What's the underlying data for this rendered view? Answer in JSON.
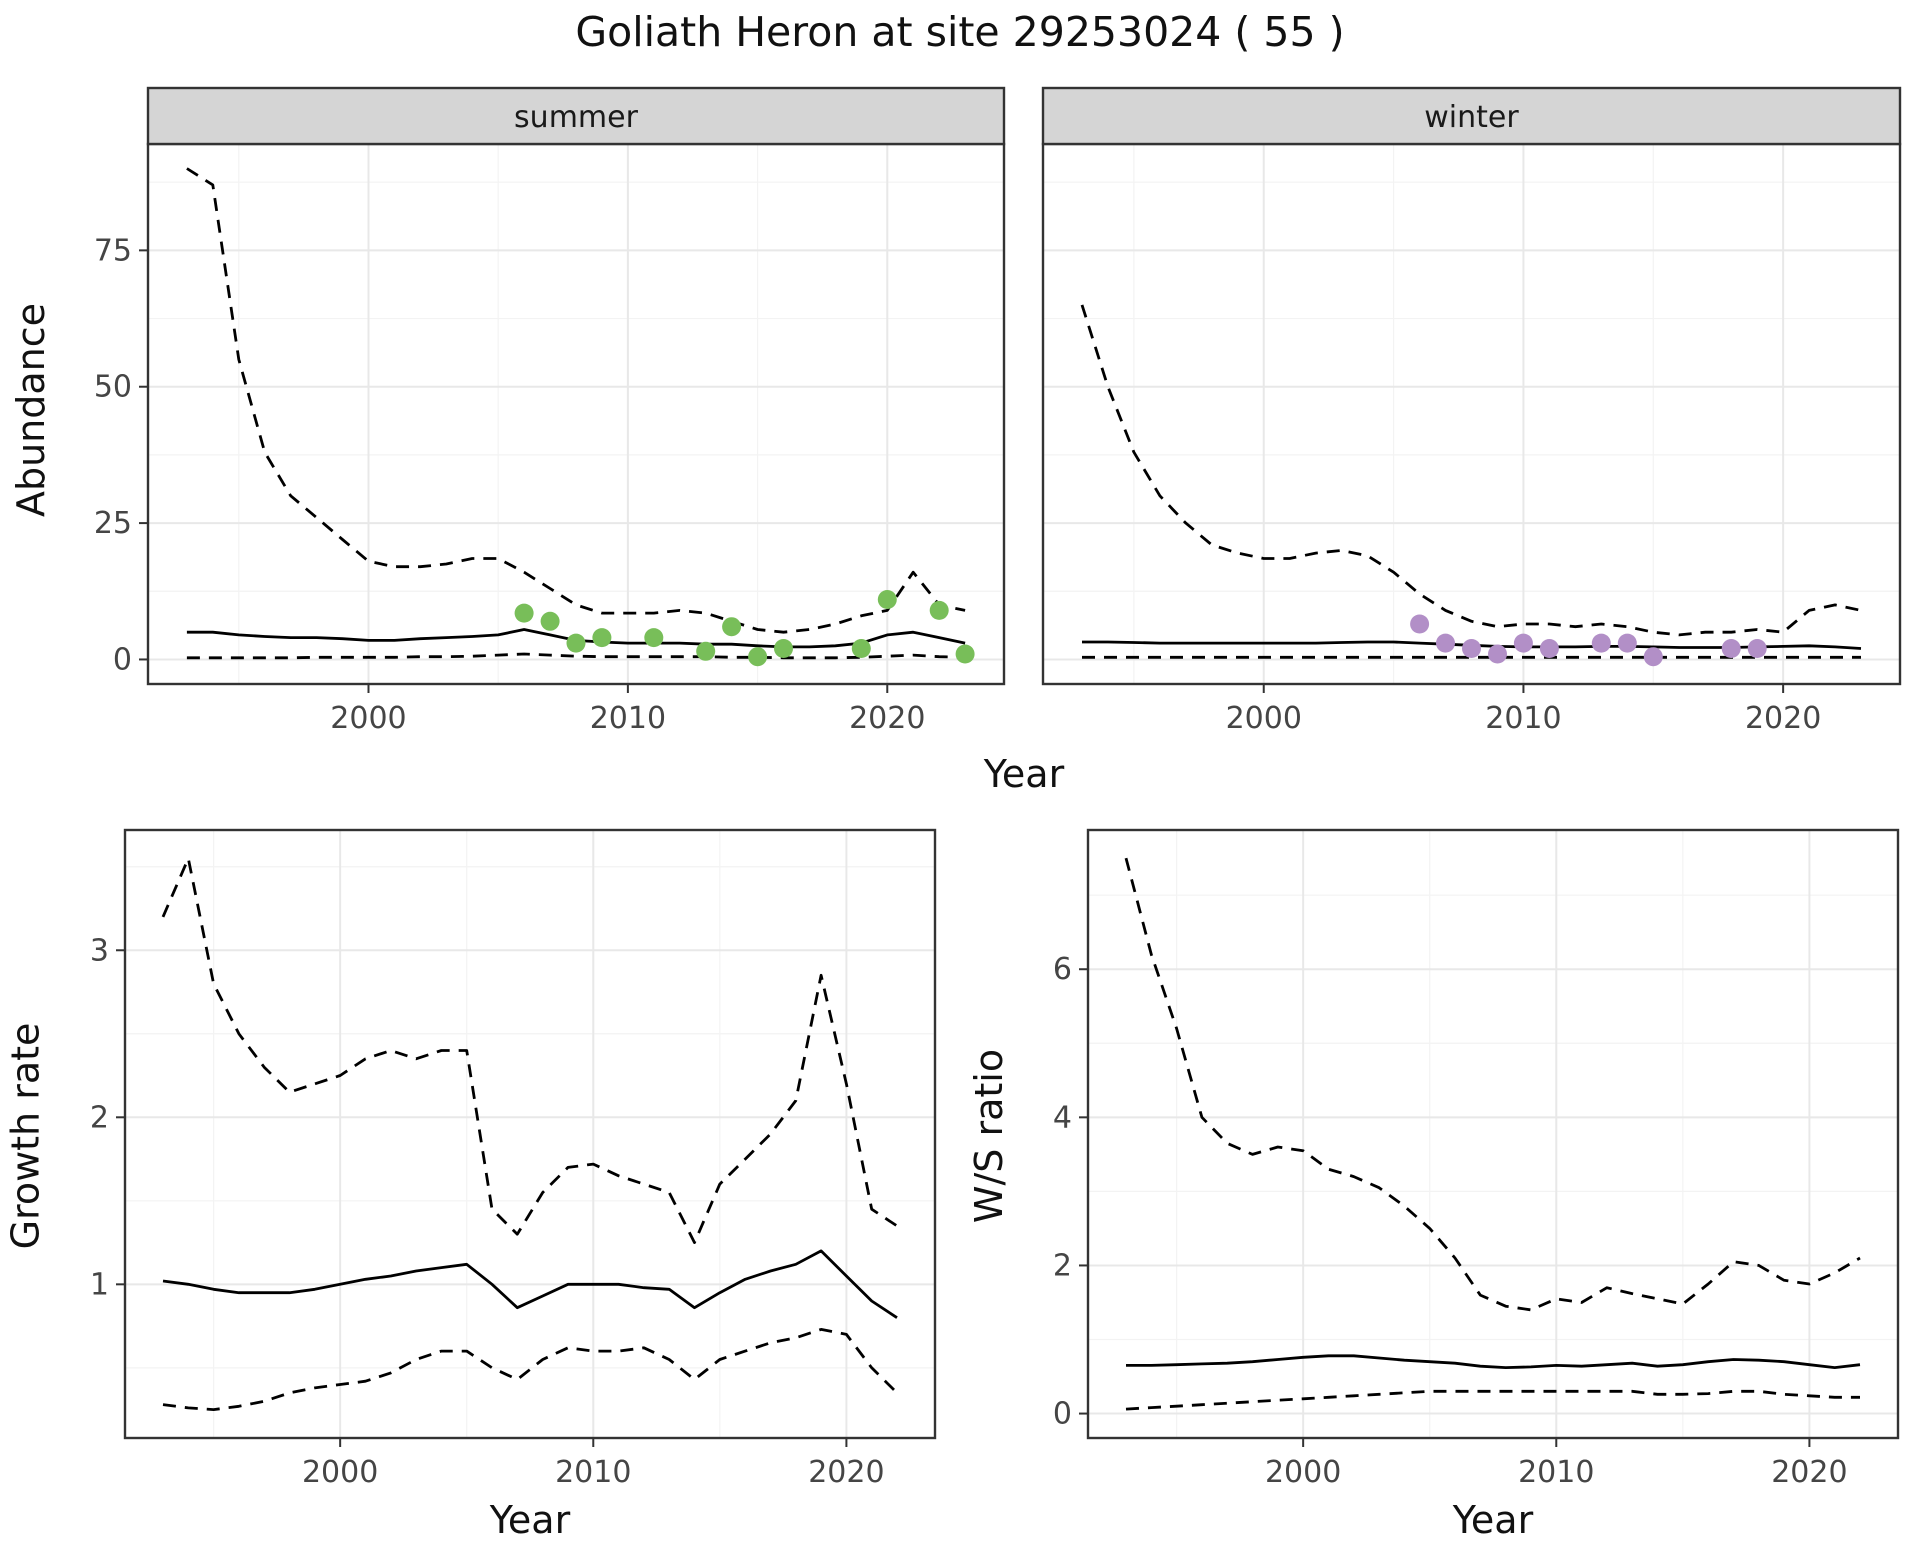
{
  "title": "Goliath Heron at site 29253024 ( 55 )",
  "axis_titles": {
    "abundance": "Abundance",
    "year_top": "Year",
    "growth_rate": "Growth rate",
    "year_bottom_left": "Year",
    "ws_ratio": "W/S ratio",
    "year_bottom_right": "Year"
  },
  "theme": {
    "background": "#ffffff",
    "line_color": "#000000",
    "point_green": "#78be59",
    "point_purple": "#b28fc7",
    "strip_bg": "#d5d5d5",
    "panel_border": "#333333",
    "grid_major": "#e8e8e8",
    "grid_minor": "#f3f3f3",
    "tick_label_color": "#454545"
  },
  "chart_data": [
    {
      "id": "abundance_summer",
      "type": "line",
      "facet": "summer",
      "xlabel": "Year",
      "ylabel": "Abundance",
      "xlim": [
        1991.5,
        2024.5
      ],
      "ylim": [
        -4.5,
        94.5
      ],
      "xticks": [
        2000,
        2010,
        2020
      ],
      "yticks": [
        0,
        25,
        50,
        75
      ],
      "show_ytick_labels": true,
      "x": [
        1993,
        1994,
        1995,
        1996,
        1997,
        1998,
        1999,
        2000,
        2001,
        2002,
        2003,
        2004,
        2005,
        2006,
        2007,
        2008,
        2009,
        2010,
        2011,
        2012,
        2013,
        2014,
        2015,
        2016,
        2017,
        2018,
        2019,
        2020,
        2021,
        2022,
        2023
      ],
      "series": [
        {
          "name": "upper-ci",
          "style": "dashed",
          "y": [
            90,
            87,
            55,
            38,
            30,
            26,
            22,
            18,
            17,
            17,
            17.5,
            18.5,
            18.5,
            16,
            13,
            10,
            8.5,
            8.5,
            8.5,
            9,
            8.5,
            7,
            5.5,
            5,
            5.5,
            6.5,
            8,
            9,
            16,
            10,
            9
          ]
        },
        {
          "name": "estimate",
          "style": "solid",
          "y": [
            5,
            5,
            4.5,
            4.2,
            4,
            4,
            3.8,
            3.5,
            3.5,
            3.8,
            4,
            4.2,
            4.5,
            5.5,
            4.5,
            3.5,
            3.2,
            3,
            3,
            3,
            2.8,
            2.8,
            2.5,
            2.3,
            2.3,
            2.5,
            3,
            4.5,
            5,
            4,
            3
          ]
        },
        {
          "name": "lower-ci",
          "style": "dashed",
          "y": [
            0.3,
            0.3,
            0.3,
            0.3,
            0.3,
            0.4,
            0.4,
            0.4,
            0.4,
            0.5,
            0.5,
            0.6,
            0.8,
            1,
            0.8,
            0.6,
            0.5,
            0.5,
            0.5,
            0.5,
            0.5,
            0.4,
            0.4,
            0.3,
            0.3,
            0.3,
            0.4,
            0.6,
            0.8,
            0.5,
            0.4
          ]
        },
        {
          "name": "observed-counts",
          "style": "points",
          "color": "#78be59",
          "x": [
            2006,
            2007,
            2008,
            2009,
            2011,
            2013,
            2014,
            2015,
            2016,
            2019,
            2020,
            2022,
            2023
          ],
          "y": [
            8.5,
            7,
            3,
            4,
            4,
            1.5,
            6,
            0.5,
            2,
            2,
            11,
            9,
            1
          ]
        }
      ]
    },
    {
      "id": "abundance_winter",
      "type": "line",
      "facet": "winter",
      "xlabel": "Year",
      "ylabel": "Abundance",
      "xlim": [
        1991.5,
        2024.5
      ],
      "ylim": [
        -4.5,
        94.5
      ],
      "xticks": [
        2000,
        2010,
        2020
      ],
      "yticks": [
        0,
        25,
        50,
        75
      ],
      "show_ytick_labels": false,
      "x": [
        1993,
        1994,
        1995,
        1996,
        1997,
        1998,
        1999,
        2000,
        2001,
        2002,
        2003,
        2004,
        2005,
        2006,
        2007,
        2008,
        2009,
        2010,
        2011,
        2012,
        2013,
        2014,
        2015,
        2016,
        2017,
        2018,
        2019,
        2020,
        2021,
        2022,
        2023
      ],
      "series": [
        {
          "name": "upper-ci",
          "style": "dashed",
          "y": [
            65,
            50,
            38,
            30,
            25,
            21,
            19.5,
            18.5,
            18.5,
            19.5,
            20,
            19,
            16,
            12,
            9,
            7,
            6,
            6.5,
            6.5,
            6,
            6.5,
            6,
            5,
            4.5,
            5,
            5,
            5.5,
            5,
            9,
            10,
            9
          ]
        },
        {
          "name": "estimate",
          "style": "solid",
          "y": [
            3.2,
            3.2,
            3.1,
            3,
            3,
            3,
            3,
            3,
            3,
            3,
            3.1,
            3.2,
            3.2,
            3,
            2.8,
            2.6,
            2.4,
            2.3,
            2.3,
            2.3,
            2.4,
            2.4,
            2.3,
            2.2,
            2.2,
            2.2,
            2.3,
            2.4,
            2.5,
            2.3,
            2
          ]
        },
        {
          "name": "lower-ci",
          "style": "dashed",
          "y": [
            0.4,
            0.4,
            0.4,
            0.4,
            0.4,
            0.4,
            0.4,
            0.4,
            0.4,
            0.4,
            0.4,
            0.4,
            0.4,
            0.4,
            0.4,
            0.4,
            0.4,
            0.4,
            0.4,
            0.4,
            0.4,
            0.4,
            0.4,
            0.4,
            0.4,
            0.4,
            0.4,
            0.4,
            0.4,
            0.4,
            0.4
          ]
        },
        {
          "name": "observed-counts",
          "style": "points",
          "color": "#b28fc7",
          "x": [
            2006,
            2007,
            2008,
            2009,
            2010,
            2011,
            2013,
            2014,
            2015,
            2018,
            2019
          ],
          "y": [
            6.5,
            3,
            2,
            1,
            3,
            2,
            3,
            3,
            0.5,
            2,
            2
          ]
        }
      ]
    },
    {
      "id": "growth_rate",
      "type": "line",
      "facet": null,
      "xlabel": "Year",
      "ylabel": "Growth rate",
      "xlim": [
        1991.5,
        2023.5
      ],
      "ylim": [
        0.08,
        3.72
      ],
      "xticks": [
        2000,
        2010,
        2020
      ],
      "yticks": [
        1,
        2,
        3
      ],
      "show_ytick_labels": true,
      "x": [
        1993,
        1994,
        1995,
        1996,
        1997,
        1998,
        1999,
        2000,
        2001,
        2002,
        2003,
        2004,
        2005,
        2006,
        2007,
        2008,
        2009,
        2010,
        2011,
        2012,
        2013,
        2014,
        2015,
        2016,
        2017,
        2018,
        2019,
        2020,
        2021,
        2022
      ],
      "series": [
        {
          "name": "upper-ci",
          "style": "dashed",
          "y": [
            3.2,
            3.55,
            2.8,
            2.5,
            2.3,
            2.15,
            2.2,
            2.25,
            2.35,
            2.4,
            2.35,
            2.4,
            2.4,
            1.45,
            1.3,
            1.55,
            1.7,
            1.72,
            1.65,
            1.6,
            1.55,
            1.25,
            1.6,
            1.75,
            1.9,
            2.1,
            2.85,
            2.2,
            1.45,
            1.35
          ]
        },
        {
          "name": "estimate",
          "style": "solid",
          "y": [
            1.02,
            1,
            0.97,
            0.95,
            0.95,
            0.95,
            0.97,
            1,
            1.03,
            1.05,
            1.08,
            1.1,
            1.12,
            1,
            0.86,
            0.93,
            1,
            1,
            1,
            0.98,
            0.97,
            0.86,
            0.95,
            1.03,
            1.08,
            1.12,
            1.2,
            1.05,
            0.9,
            0.8
          ]
        },
        {
          "name": "lower-ci",
          "style": "dashed",
          "y": [
            0.28,
            0.26,
            0.25,
            0.27,
            0.3,
            0.35,
            0.38,
            0.4,
            0.42,
            0.47,
            0.55,
            0.6,
            0.6,
            0.5,
            0.43,
            0.55,
            0.62,
            0.6,
            0.6,
            0.62,
            0.55,
            0.43,
            0.55,
            0.6,
            0.65,
            0.68,
            0.73,
            0.7,
            0.5,
            0.35
          ]
        }
      ]
    },
    {
      "id": "ws_ratio",
      "type": "line",
      "facet": null,
      "xlabel": "Year",
      "ylabel": "W/S ratio",
      "xlim": [
        1991.5,
        2023.5
      ],
      "ylim": [
        -0.33,
        7.88
      ],
      "xticks": [
        2000,
        2010,
        2020
      ],
      "yticks": [
        0,
        2,
        4,
        6
      ],
      "show_ytick_labels": true,
      "x": [
        1993,
        1994,
        1995,
        1996,
        1997,
        1998,
        1999,
        2000,
        2001,
        2002,
        2003,
        2004,
        2005,
        2006,
        2007,
        2008,
        2009,
        2010,
        2011,
        2012,
        2013,
        2014,
        2015,
        2016,
        2017,
        2018,
        2019,
        2020,
        2021,
        2022
      ],
      "series": [
        {
          "name": "upper-ci",
          "style": "dashed",
          "y": [
            7.5,
            6.2,
            5.2,
            4,
            3.65,
            3.5,
            3.6,
            3.55,
            3.3,
            3.2,
            3.05,
            2.8,
            2.5,
            2.1,
            1.6,
            1.45,
            1.4,
            1.55,
            1.5,
            1.7,
            1.62,
            1.55,
            1.48,
            1.75,
            2.05,
            2,
            1.8,
            1.75,
            1.9,
            2.1
          ]
        },
        {
          "name": "estimate",
          "style": "solid",
          "y": [
            0.65,
            0.65,
            0.66,
            0.67,
            0.68,
            0.7,
            0.73,
            0.76,
            0.78,
            0.78,
            0.75,
            0.72,
            0.7,
            0.68,
            0.64,
            0.62,
            0.63,
            0.65,
            0.64,
            0.66,
            0.68,
            0.64,
            0.66,
            0.7,
            0.73,
            0.72,
            0.7,
            0.66,
            0.62,
            0.66
          ]
        },
        {
          "name": "lower-ci",
          "style": "dashed",
          "y": [
            0.06,
            0.08,
            0.1,
            0.12,
            0.14,
            0.16,
            0.18,
            0.2,
            0.22,
            0.24,
            0.26,
            0.28,
            0.3,
            0.3,
            0.3,
            0.3,
            0.3,
            0.3,
            0.3,
            0.3,
            0.3,
            0.26,
            0.26,
            0.27,
            0.3,
            0.3,
            0.26,
            0.24,
            0.22,
            0.22
          ]
        }
      ]
    }
  ]
}
